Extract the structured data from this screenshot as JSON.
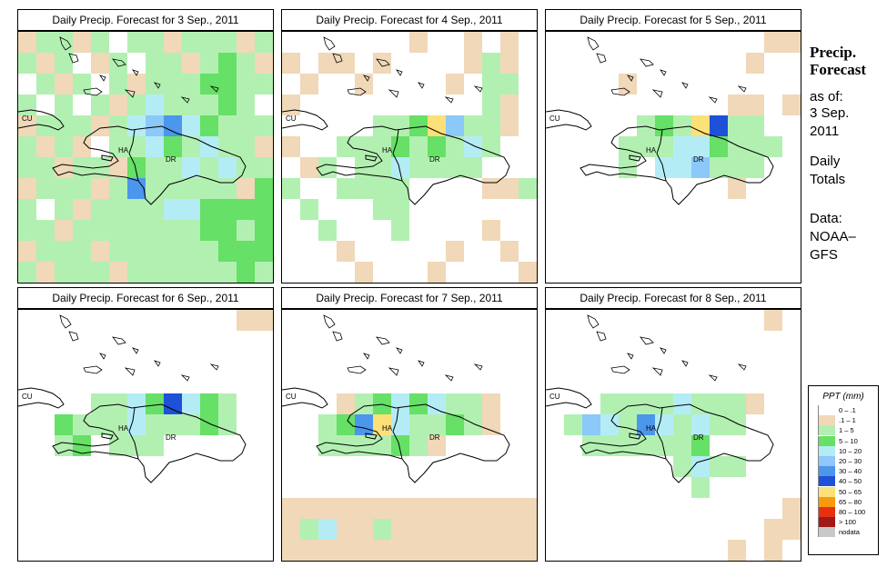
{
  "panels": [
    {
      "title": "Daily Precip. Forecast for  3 Sep., 2011"
    },
    {
      "title": "Daily Precip. Forecast for  4 Sep., 2011"
    },
    {
      "title": "Daily Precip. Forecast for  5 Sep., 2011"
    },
    {
      "title": "Daily Precip. Forecast for  6 Sep., 2011"
    },
    {
      "title": "Daily Precip. Forecast for  7 Sep., 2011"
    },
    {
      "title": "Daily Precip. Forecast for  8 Sep., 2011"
    }
  ],
  "map_labels": {
    "cuba": "CU",
    "haiti": "HA",
    "dominican_republic": "DR"
  },
  "side": {
    "title_line1": "Precip.",
    "title_line2": "Forecast",
    "asof": "as of:",
    "date_line1": "3 Sep.",
    "date_line2": "2011",
    "daily_line1": "Daily",
    "daily_line2": "Totals",
    "data_line1": "Data:",
    "data_line2": "NOAA–",
    "data_line3": "GFS"
  },
  "legend": {
    "title": "PPT (mm)",
    "items": [
      {
        "label": "0 – .1",
        "color": "#ffffff"
      },
      {
        "label": ".1 – 1",
        "color": "#f0d8b8"
      },
      {
        "label": "1 – 5",
        "color": "#b2f0b2"
      },
      {
        "label": "5 – 10",
        "color": "#66e066"
      },
      {
        "label": "10 – 20",
        "color": "#b4ecf6"
      },
      {
        "label": "20 – 30",
        "color": "#8cc8f8"
      },
      {
        "label": "30 – 40",
        "color": "#4c96ec"
      },
      {
        "label": "40 – 50",
        "color": "#1e50d8"
      },
      {
        "label": "50 – 65",
        "color": "#fce078"
      },
      {
        "label": "65 – 80",
        "color": "#f89a10"
      },
      {
        "label": "80 – 100",
        "color": "#e83010"
      },
      {
        "label": "> 100",
        "color": "#a01818"
      },
      {
        "label": "nodata",
        "color": "#c8c8c8"
      }
    ]
  },
  "map_cells": [
    [
      [
        1,
        2,
        2,
        1,
        2,
        0,
        2,
        2,
        1,
        2,
        2,
        2,
        1,
        2
      ],
      [
        2,
        1,
        2,
        0,
        1,
        2,
        0,
        2,
        2,
        1,
        2,
        3,
        2,
        1
      ],
      [
        0,
        2,
        1,
        2,
        0,
        2,
        1,
        2,
        2,
        2,
        3,
        3,
        2,
        2
      ],
      [
        2,
        0,
        2,
        0,
        2,
        1,
        2,
        4,
        2,
        2,
        2,
        3,
        2,
        0
      ],
      [
        1,
        2,
        2,
        2,
        1,
        2,
        4,
        5,
        6,
        4,
        3,
        2,
        2,
        2
      ],
      [
        2,
        1,
        2,
        1,
        0,
        2,
        2,
        4,
        3,
        2,
        4,
        2,
        2,
        1
      ],
      [
        2,
        2,
        1,
        2,
        2,
        1,
        3,
        2,
        2,
        4,
        2,
        4,
        2,
        2
      ],
      [
        1,
        2,
        2,
        2,
        1,
        2,
        6,
        2,
        2,
        2,
        2,
        2,
        1,
        3
      ],
      [
        2,
        0,
        2,
        1,
        2,
        2,
        2,
        2,
        4,
        4,
        3,
        3,
        3,
        3
      ],
      [
        2,
        2,
        1,
        2,
        2,
        2,
        2,
        2,
        2,
        2,
        3,
        3,
        2,
        3
      ],
      [
        1,
        2,
        2,
        2,
        1,
        2,
        2,
        2,
        2,
        2,
        2,
        3,
        3,
        3
      ],
      [
        2,
        1,
        2,
        2,
        2,
        1,
        2,
        2,
        2,
        2,
        2,
        2,
        3,
        2
      ]
    ],
    [
      [
        0,
        0,
        0,
        0,
        0,
        0,
        0,
        1,
        0,
        0,
        1,
        0,
        1,
        0
      ],
      [
        1,
        0,
        1,
        1,
        0,
        1,
        0,
        0,
        0,
        0,
        1,
        2,
        1,
        0
      ],
      [
        0,
        1,
        0,
        0,
        1,
        0,
        0,
        0,
        0,
        1,
        0,
        2,
        2,
        0
      ],
      [
        1,
        0,
        0,
        0,
        0,
        0,
        0,
        0,
        0,
        0,
        0,
        2,
        1,
        0
      ],
      [
        0,
        0,
        0,
        0,
        0,
        2,
        2,
        3,
        8,
        5,
        2,
        2,
        1,
        0
      ],
      [
        1,
        0,
        0,
        2,
        2,
        2,
        3,
        2,
        3,
        2,
        4,
        2,
        0,
        0
      ],
      [
        0,
        1,
        2,
        0,
        2,
        2,
        4,
        2,
        2,
        2,
        2,
        0,
        0,
        0
      ],
      [
        2,
        0,
        0,
        2,
        2,
        2,
        2,
        0,
        0,
        0,
        0,
        1,
        1,
        2
      ],
      [
        0,
        2,
        0,
        0,
        0,
        2,
        2,
        0,
        0,
        0,
        0,
        0,
        0,
        0
      ],
      [
        0,
        0,
        2,
        0,
        0,
        0,
        2,
        0,
        0,
        0,
        0,
        1,
        0,
        0
      ],
      [
        0,
        0,
        0,
        1,
        0,
        0,
        0,
        0,
        0,
        1,
        0,
        0,
        1,
        0
      ],
      [
        0,
        0,
        0,
        0,
        1,
        0,
        0,
        0,
        1,
        0,
        0,
        0,
        0,
        1
      ]
    ],
    [
      [
        0,
        0,
        0,
        0,
        0,
        0,
        0,
        0,
        0,
        0,
        0,
        0,
        1,
        1
      ],
      [
        0,
        0,
        0,
        0,
        0,
        0,
        0,
        0,
        0,
        0,
        0,
        1,
        0,
        0
      ],
      [
        0,
        0,
        0,
        0,
        1,
        0,
        0,
        0,
        0,
        0,
        0,
        0,
        0,
        0
      ],
      [
        0,
        0,
        0,
        0,
        0,
        0,
        0,
        0,
        0,
        0,
        1,
        1,
        0,
        1
      ],
      [
        0,
        0,
        0,
        0,
        0,
        2,
        3,
        2,
        8,
        7,
        2,
        2,
        0,
        0
      ],
      [
        0,
        0,
        0,
        0,
        2,
        2,
        2,
        4,
        4,
        3,
        2,
        2,
        2,
        0
      ],
      [
        0,
        0,
        0,
        0,
        2,
        0,
        4,
        4,
        5,
        2,
        2,
        2,
        0,
        0
      ],
      [
        0,
        0,
        0,
        0,
        0,
        0,
        0,
        0,
        0,
        0,
        1,
        0,
        0,
        0
      ],
      [
        0,
        0,
        0,
        0,
        0,
        0,
        0,
        0,
        0,
        0,
        0,
        0,
        0,
        0
      ],
      [
        0,
        0,
        0,
        0,
        0,
        0,
        0,
        0,
        0,
        0,
        0,
        0,
        0,
        0
      ],
      [
        0,
        0,
        0,
        0,
        0,
        0,
        0,
        0,
        0,
        0,
        0,
        0,
        0,
        0
      ],
      [
        0,
        0,
        0,
        0,
        0,
        0,
        0,
        0,
        0,
        0,
        0,
        0,
        0,
        0
      ]
    ],
    [
      [
        0,
        0,
        0,
        0,
        0,
        0,
        0,
        0,
        0,
        0,
        0,
        0,
        1,
        1
      ],
      [
        0,
        0,
        0,
        0,
        0,
        0,
        0,
        0,
        0,
        0,
        0,
        0,
        0,
        0
      ],
      [
        0,
        0,
        0,
        0,
        0,
        0,
        0,
        0,
        0,
        0,
        0,
        0,
        0,
        0
      ],
      [
        0,
        0,
        0,
        0,
        0,
        0,
        0,
        0,
        0,
        0,
        0,
        0,
        0,
        0
      ],
      [
        0,
        0,
        0,
        0,
        2,
        2,
        4,
        3,
        7,
        4,
        3,
        2,
        0,
        0
      ],
      [
        0,
        0,
        3,
        2,
        2,
        2,
        4,
        2,
        2,
        2,
        3,
        2,
        0,
        0
      ],
      [
        0,
        0,
        2,
        3,
        0,
        2,
        2,
        2,
        0,
        0,
        0,
        0,
        0,
        0
      ],
      [
        0,
        0,
        0,
        0,
        0,
        0,
        0,
        0,
        0,
        0,
        0,
        0,
        0,
        0
      ],
      [
        0,
        0,
        0,
        0,
        0,
        0,
        0,
        0,
        0,
        0,
        0,
        0,
        0,
        0
      ],
      [
        0,
        0,
        0,
        0,
        0,
        0,
        0,
        0,
        0,
        0,
        0,
        0,
        0,
        0
      ],
      [
        0,
        0,
        0,
        0,
        0,
        0,
        0,
        0,
        0,
        0,
        0,
        0,
        0,
        0
      ],
      [
        0,
        0,
        0,
        0,
        0,
        0,
        0,
        0,
        0,
        0,
        0,
        0,
        0,
        0
      ]
    ],
    [
      [
        0,
        0,
        0,
        0,
        0,
        0,
        0,
        0,
        0,
        0,
        0,
        0,
        0,
        0
      ],
      [
        0,
        0,
        0,
        0,
        0,
        0,
        0,
        0,
        0,
        0,
        0,
        0,
        0,
        0
      ],
      [
        0,
        0,
        0,
        0,
        0,
        0,
        0,
        0,
        0,
        0,
        0,
        0,
        0,
        0
      ],
      [
        0,
        0,
        0,
        0,
        0,
        0,
        0,
        0,
        0,
        0,
        0,
        0,
        0,
        0
      ],
      [
        0,
        0,
        0,
        1,
        2,
        3,
        4,
        3,
        4,
        2,
        2,
        1,
        0,
        0
      ],
      [
        0,
        0,
        2,
        3,
        6,
        8,
        4,
        2,
        2,
        3,
        2,
        1,
        0,
        0
      ],
      [
        0,
        0,
        2,
        2,
        2,
        2,
        3,
        2,
        1,
        0,
        0,
        0,
        0,
        0
      ],
      [
        0,
        0,
        0,
        0,
        0,
        0,
        0,
        0,
        0,
        0,
        0,
        0,
        0,
        0
      ],
      [
        0,
        0,
        0,
        0,
        0,
        0,
        0,
        0,
        0,
        0,
        0,
        0,
        0,
        0
      ],
      [
        1,
        1,
        1,
        1,
        1,
        1,
        1,
        1,
        1,
        1,
        1,
        1,
        1,
        1
      ],
      [
        1,
        2,
        4,
        1,
        1,
        2,
        1,
        1,
        1,
        1,
        1,
        1,
        1,
        1
      ],
      [
        1,
        1,
        1,
        1,
        1,
        1,
        1,
        1,
        1,
        1,
        1,
        1,
        1,
        1
      ]
    ],
    [
      [
        0,
        0,
        0,
        0,
        0,
        0,
        0,
        0,
        0,
        0,
        0,
        0,
        1,
        0
      ],
      [
        0,
        0,
        0,
        0,
        0,
        0,
        0,
        0,
        0,
        0,
        0,
        0,
        0,
        0
      ],
      [
        0,
        0,
        0,
        0,
        0,
        0,
        0,
        0,
        0,
        0,
        0,
        0,
        0,
        0
      ],
      [
        0,
        0,
        0,
        0,
        0,
        0,
        0,
        0,
        0,
        0,
        0,
        0,
        0,
        0
      ],
      [
        0,
        0,
        0,
        2,
        2,
        2,
        2,
        4,
        2,
        2,
        2,
        1,
        0,
        0
      ],
      [
        0,
        2,
        5,
        4,
        2,
        6,
        4,
        2,
        4,
        2,
        2,
        0,
        0,
        0
      ],
      [
        0,
        0,
        2,
        2,
        2,
        2,
        2,
        2,
        3,
        0,
        0,
        0,
        0,
        0
      ],
      [
        0,
        0,
        0,
        0,
        0,
        0,
        0,
        2,
        4,
        2,
        2,
        0,
        0,
        0
      ],
      [
        0,
        0,
        0,
        0,
        0,
        0,
        0,
        0,
        2,
        0,
        0,
        0,
        0,
        0
      ],
      [
        0,
        0,
        0,
        0,
        0,
        0,
        0,
        0,
        0,
        0,
        0,
        0,
        0,
        1
      ],
      [
        0,
        0,
        0,
        0,
        0,
        0,
        0,
        0,
        0,
        0,
        0,
        0,
        1,
        1
      ],
      [
        0,
        0,
        0,
        0,
        0,
        0,
        0,
        0,
        0,
        0,
        1,
        0,
        1,
        0
      ]
    ]
  ]
}
